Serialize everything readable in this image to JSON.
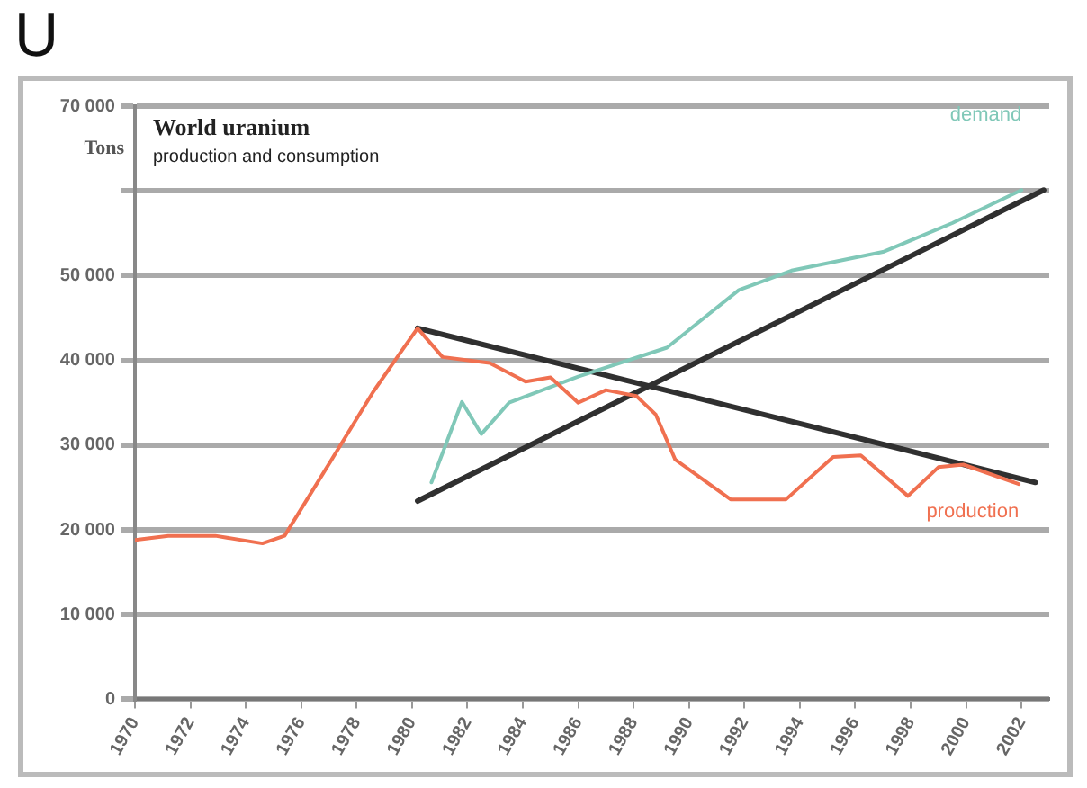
{
  "chart_data": {
    "type": "line",
    "title": "U",
    "subtitle": "World uranium",
    "ylabel": "Tons",
    "annotations": [
      "production and consumption"
    ],
    "xlim": [
      1970,
      2003
    ],
    "xticks": [
      1970,
      1972,
      1974,
      1976,
      1978,
      1980,
      1982,
      1984,
      1986,
      1988,
      1990,
      1992,
      1994,
      1996,
      1998,
      2000,
      2002
    ],
    "ylim": [
      0,
      70000
    ],
    "yticks": [
      {
        "value": 0,
        "label": "0"
      },
      {
        "value": 10000,
        "label": "10 000"
      },
      {
        "value": 20000,
        "label": "20 000"
      },
      {
        "value": 30000,
        "label": "30 000"
      },
      {
        "value": 40000,
        "label": "40 000"
      },
      {
        "value": 50000,
        "label": "50 000"
      },
      {
        "value": 60000,
        "label": null
      },
      {
        "value": 70000,
        "label": "70 000"
      }
    ],
    "grid": "y",
    "legend": false,
    "marker": "none",
    "line_style": "solid",
    "series": [
      {
        "name": "production",
        "color": "#f07050",
        "x": [
          1970,
          1971.2,
          1972.9,
          1974.6,
          1975.4,
          1977.1,
          1978.6,
          1979.6,
          1980.2,
          1981.1,
          1982.8,
          1984.1,
          1985,
          1986,
          1987,
          1988.1,
          1988.8,
          1989.5,
          1991.5,
          1993.5,
          1995.2,
          1996.2,
          1997.9,
          1999,
          1999.9,
          2001.9
        ],
        "values": [
          18800,
          19300,
          19300,
          18400,
          19300,
          28300,
          36300,
          41000,
          43800,
          40400,
          39700,
          37500,
          38000,
          35000,
          36500,
          35800,
          33600,
          28300,
          23600,
          23600,
          28600,
          28800,
          24000,
          27400,
          27700,
          25400
        ]
      },
      {
        "name": "demand",
        "color": "#80c8b8",
        "x": [
          1980.7,
          1981.8,
          1982.5,
          1983.5,
          1986,
          1989.2,
          1991.8,
          1993.7,
          1997,
          1999.5,
          2002
        ],
        "values": [
          25600,
          35100,
          31300,
          35000,
          38100,
          41500,
          48300,
          50600,
          52800,
          56200,
          60100
        ]
      },
      {
        "type": "line",
        "color": "#303030",
        "x": [
          1980.2,
          2002.5
        ],
        "values": [
          43800,
          25600
        ]
      },
      {
        "type": "line",
        "color": "#303030",
        "x": [
          1980.2,
          2002.8
        ],
        "values": [
          23400,
          60100
        ]
      }
    ]
  }
}
